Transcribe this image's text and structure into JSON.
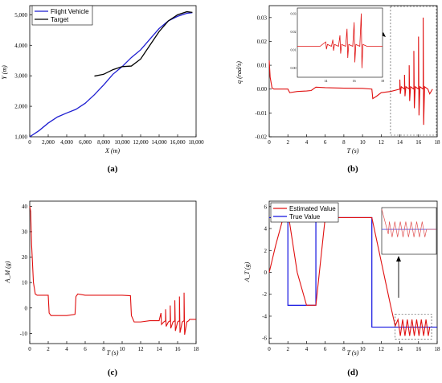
{
  "chart_data": [
    {
      "type": "line",
      "caption": "(a)",
      "xlabel": "X (m)",
      "ylabel": "Y (m)",
      "xlim": [
        0,
        18000
      ],
      "ylim": [
        1000,
        5300
      ],
      "xticks": [
        "0",
        "2,000",
        "4,000",
        "6,000",
        "8,000",
        "10,000",
        "12,000",
        "14,000",
        "16,000",
        "18,000"
      ],
      "yticks": [
        "1,000",
        "2,000",
        "3,000",
        "4,000",
        "5,000"
      ],
      "legend_position": "top-left",
      "series": [
        {
          "name": "Flight Vehicle",
          "color": "#1f1fd1",
          "x": [
            0,
            1000,
            2000,
            3000,
            4000,
            5000,
            6000,
            7000,
            8000,
            9000,
            10000,
            11000,
            12000,
            13000,
            14000,
            15000,
            16000,
            17000,
            17600
          ],
          "y": [
            1000,
            1200,
            1450,
            1650,
            1780,
            1900,
            2100,
            2380,
            2700,
            3050,
            3300,
            3600,
            3850,
            4200,
            4550,
            4800,
            4950,
            5050,
            5070
          ]
        },
        {
          "name": "Target",
          "color": "#000000",
          "x": [
            7000,
            8000,
            9000,
            10000,
            11000,
            12000,
            13000,
            14000,
            15000,
            16000,
            17000,
            17600
          ],
          "y": [
            2990,
            3050,
            3200,
            3300,
            3320,
            3550,
            4000,
            4450,
            4800,
            5000,
            5100,
            5080
          ]
        }
      ]
    },
    {
      "type": "line",
      "caption": "(b)",
      "xlabel": "T (s)",
      "ylabel": "q (rad/s)",
      "xlim": [
        0,
        18
      ],
      "ylim": [
        -0.02,
        0.035
      ],
      "xticks": [
        "0",
        "2",
        "4",
        "6",
        "8",
        "10",
        "12",
        "14",
        "16",
        "18"
      ],
      "yticks": [
        "-0.02",
        "-0.01",
        "0.00",
        "0.01",
        "0.02",
        "0.03"
      ],
      "inset": {
        "xticks": [
          "14",
          "16",
          "18"
        ],
        "yticks": [
          "0.00",
          "0.01",
          "0.02",
          "0.03"
        ]
      },
      "series": [
        {
          "color": "#e01010",
          "x": [
            0,
            0.1,
            0.3,
            0.5,
            1.0,
            2.0,
            2.2,
            3.0,
            4.0,
            4.5,
            5.0,
            6.0,
            8.0,
            10.0,
            11.0,
            11.1,
            11.5,
            12.0,
            13.0,
            14.0
          ],
          "y": [
            0.012,
            0.005,
            0.0005,
            0.0,
            0.0,
            0.0,
            -0.0015,
            -0.001,
            -0.0008,
            -0.0006,
            0.0008,
            0.0006,
            0.0004,
            0.0003,
            0.0,
            -0.004,
            -0.003,
            -0.0015,
            -0.001,
            0.0
          ]
        }
      ]
    },
    {
      "type": "line",
      "caption": "(c)",
      "xlabel": "T (s)",
      "ylabel": "A_M (g)",
      "xlim": [
        0,
        18
      ],
      "ylim": [
        -14,
        42
      ],
      "xticks": [
        "0",
        "2",
        "4",
        "6",
        "8",
        "10",
        "12",
        "14",
        "16",
        "18"
      ],
      "yticks": [
        "-10",
        "0",
        "10",
        "20",
        "30",
        "40"
      ],
      "series": [
        {
          "color": "#e01010",
          "x": [
            0,
            0.1,
            0.2,
            0.4,
            0.6,
            0.8,
            2.0,
            2.1,
            2.3,
            3.0,
            4.0,
            4.9,
            5.0,
            5.2,
            6.0,
            8.0,
            10.0,
            10.9,
            11.0,
            11.3,
            12.0,
            13.0,
            14.0
          ],
          "y": [
            40,
            38,
            25,
            10,
            5.5,
            5,
            5,
            -2,
            -3,
            -3,
            -3,
            -2.5,
            4.5,
            5.5,
            5,
            5,
            5,
            4.8,
            -3,
            -5.5,
            -5.5,
            -5,
            -5
          ]
        }
      ]
    },
    {
      "type": "line",
      "caption": "(d)",
      "xlabel": "T (s)",
      "ylabel": "A_T (g)",
      "xlim": [
        0,
        18
      ],
      "ylim": [
        -6.5,
        6.5
      ],
      "xticks": [
        "0",
        "2",
        "4",
        "6",
        "8",
        "10",
        "12",
        "14",
        "16",
        "18"
      ],
      "yticks": [
        "-6",
        "-4",
        "-2",
        "0",
        "2",
        "4",
        "6"
      ],
      "legend_position": "top-left",
      "series": [
        {
          "name": "Estimated Value",
          "color": "#e01010",
          "x": [
            0,
            0.7,
            1.5,
            2.0,
            2.1,
            3.0,
            4.0,
            5.0,
            6.0,
            7.0,
            8.0,
            9.0,
            10.0,
            11.0,
            12.0,
            13.0,
            13.5
          ],
          "y": [
            0,
            2.5,
            5,
            5,
            5,
            0,
            -3,
            -3,
            5,
            5,
            5,
            5,
            5,
            5,
            1,
            -3,
            -4.9
          ]
        },
        {
          "name": "True Value",
          "color": "#1010e0",
          "x": [
            0,
            2,
            2,
            5,
            5,
            11,
            11,
            18
          ],
          "y": [
            5,
            5,
            -3,
            -3,
            5,
            5,
            -5,
            -5
          ]
        }
      ]
    }
  ]
}
